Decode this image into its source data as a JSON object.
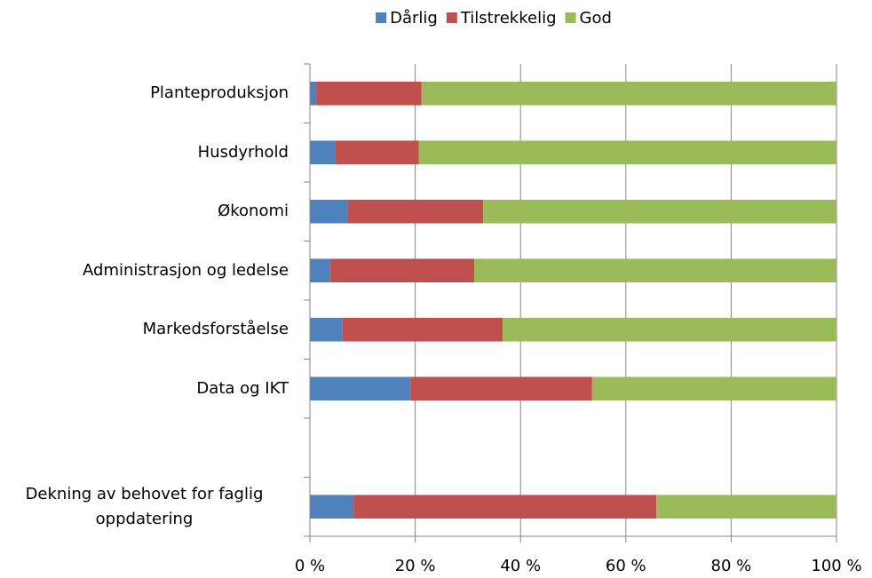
{
  "chart_data": {
    "type": "stacked_barh",
    "categories": [
      "Planteproduksjon",
      "Husdyrhold",
      "Økonomi",
      "Administrasjon og ledelse",
      "Markedsforståelse",
      "Data og IKT",
      null,
      "Dekning av behovet for faglig oppdatering"
    ],
    "series": [
      {
        "name": "Dårlig",
        "color": "#4f81bd",
        "values": [
          1.2,
          4.9,
          7.1,
          3.9,
          6.1,
          19.1,
          null,
          8.3
        ]
      },
      {
        "name": "Tilstrekkelig",
        "color": "#c0504d",
        "values": [
          20.0,
          15.8,
          25.8,
          27.3,
          30.5,
          34.5,
          null,
          57.5
        ]
      },
      {
        "name": "God",
        "color": "#9bbb59",
        "values": [
          78.8,
          79.3,
          67.1,
          68.8,
          63.4,
          46.4,
          null,
          34.2
        ]
      }
    ],
    "xlim": [
      0,
      100
    ],
    "xticks": [
      {
        "value": 0,
        "label": "0 %"
      },
      {
        "value": 20,
        "label": "20 %"
      },
      {
        "value": 40,
        "label": "40 %"
      },
      {
        "value": 60,
        "label": "60 %"
      },
      {
        "value": 80,
        "label": "80 %"
      },
      {
        "value": 100,
        "label": "100 %"
      }
    ],
    "grid": true,
    "legend": "top"
  }
}
